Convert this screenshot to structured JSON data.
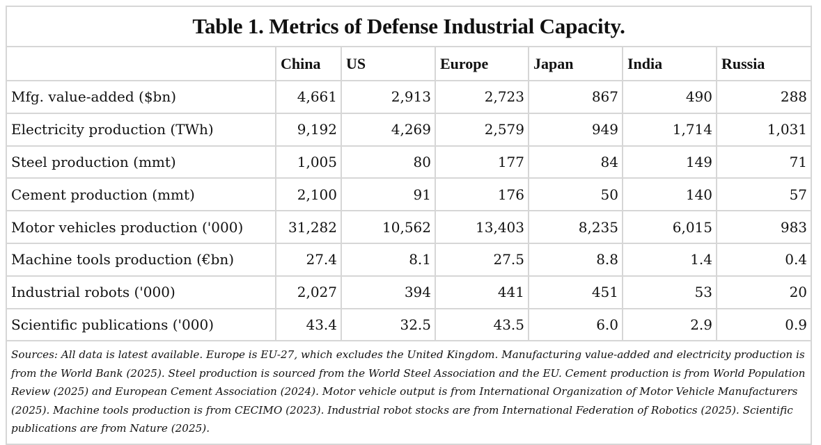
{
  "title": "Table 1. Metrics of Defense Industrial Capacity.",
  "columns": [
    "",
    "China",
    "US",
    "Europe",
    "Japan",
    "India",
    "Russia"
  ],
  "rows": [
    {
      "label": "Mfg. value-added ($bn)",
      "values": [
        "4,661",
        "2,913",
        "2,723",
        "867",
        "490",
        "288"
      ]
    },
    {
      "label": "Electricity production (TWh)",
      "values": [
        "9,192",
        "4,269",
        "2,579",
        "949",
        "1,714",
        "1,031"
      ]
    },
    {
      "label": "Steel production (mmt)",
      "values": [
        "1,005",
        "80",
        "177",
        "84",
        "149",
        "71"
      ]
    },
    {
      "label": "Cement production (mmt)",
      "values": [
        "2,100",
        "91",
        "176",
        "50",
        "140",
        "57"
      ]
    },
    {
      "label": "Motor vehicles production ('000)",
      "values": [
        "31,282",
        "10,562",
        "13,403",
        "8,235",
        "6,015",
        "983"
      ]
    },
    {
      "label": "Machine tools production (€bn)",
      "values": [
        "27.4",
        "8.1",
        "27.5",
        "8.8",
        "1.4",
        "0.4"
      ]
    },
    {
      "label": "Industrial robots ('000)",
      "values": [
        "2,027",
        "394",
        "441",
        "451",
        "53",
        "20"
      ]
    },
    {
      "label": "Scientific publications ('000)",
      "values": [
        "43.4",
        "32.5",
        "43.5",
        "6.0",
        "2.9",
        "0.9"
      ]
    }
  ],
  "sources": "Sources: All data is latest available. Europe is EU-27, which excludes the United Kingdom. Manufacturing value-added and electricity production is from the World Bank (2025). Steel production is sourced from the World Steel Association and the EU. Cement production is from World Population Review (2025) and European Cement Association (2024). Motor vehicle output is from International Organization of Motor Vehicle Manufacturers (2025). Machine tools production is from CECIMO (2023). Industrial robot stocks are from International Federation of Robotics (2025). Scientific publications are from Nature (2025)."
}
